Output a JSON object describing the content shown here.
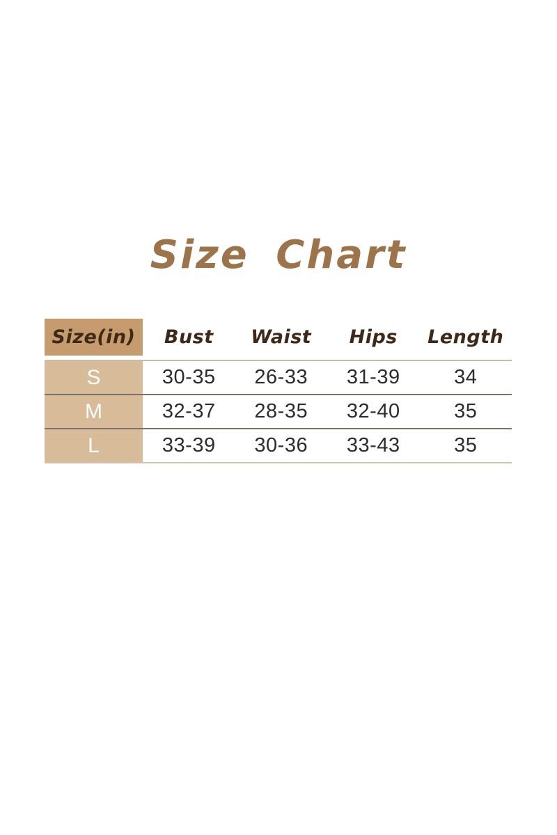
{
  "title": {
    "text": "Size Chart",
    "color": "#9d7349"
  },
  "table": {
    "header": {
      "size_label": "Size(in)",
      "columns": [
        "Bust",
        "Waist",
        "Hips",
        "Length"
      ]
    },
    "rows": [
      {
        "size": "S",
        "bust": "30-35",
        "waist": "26-33",
        "hips": "31-39",
        "length": "34"
      },
      {
        "size": "M",
        "bust": "32-37",
        "waist": "28-35",
        "hips": "32-40",
        "length": "35"
      },
      {
        "size": "L",
        "bust": "33-39",
        "waist": "30-36",
        "hips": "33-43",
        "length": "35"
      }
    ],
    "colors": {
      "header_cell_bg": "#c69c6e",
      "header_text": "#3e2817",
      "row_label_bg": "#d8bb99",
      "row_label_text": "#ffffff",
      "data_text": "#2d2d2d",
      "row_separator": "#7b736a",
      "outer_line": "#c6bcae"
    }
  },
  "chart_data": {
    "type": "table",
    "title": "Size Chart",
    "units": "inches",
    "columns": [
      "Size(in)",
      "Bust",
      "Waist",
      "Hips",
      "Length"
    ],
    "rows": [
      [
        "S",
        "30-35",
        "26-33",
        "31-39",
        "34"
      ],
      [
        "M",
        "32-37",
        "28-35",
        "32-40",
        "35"
      ],
      [
        "L",
        "33-39",
        "30-36",
        "33-43",
        "35"
      ]
    ]
  }
}
